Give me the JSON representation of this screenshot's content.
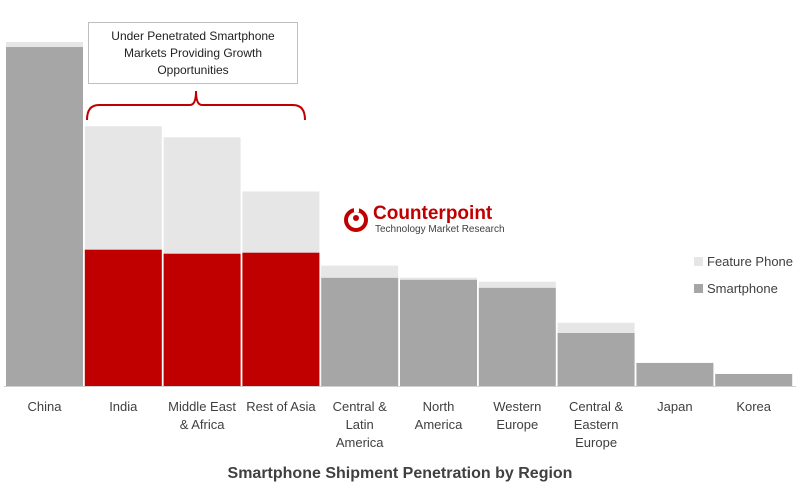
{
  "callout": {
    "text": "Under Penetrated Smartphone Markets Providing Growth Opportunities"
  },
  "logo": {
    "name": "Counterpoint",
    "tagline": "Technology Market Research"
  },
  "colors": {
    "smartphone": "#a6a6a6",
    "highlight": "#c00000",
    "feature_phone": "#e6e6e6",
    "bracket": "#c00000"
  },
  "chart_data": {
    "type": "bar",
    "stacked": true,
    "title": "Smartphone Shipment Penetration by Region",
    "categories": [
      "China",
      "India",
      "Middle East & Africa",
      "Rest of Asia",
      "Central & Latin America",
      "North America",
      "Western Europe",
      "Central & Eastern Europe",
      "Japan",
      "Korea"
    ],
    "category_lines": [
      [
        "China"
      ],
      [
        "India"
      ],
      [
        "Middle East",
        "& Africa"
      ],
      [
        "Rest of Asia"
      ],
      [
        "Central &",
        "Latin",
        "America"
      ],
      [
        "North",
        "America"
      ],
      [
        "Western",
        "Europe"
      ],
      [
        "Central &",
        "Eastern",
        "Europe"
      ],
      [
        "Japan"
      ],
      [
        "Korea"
      ]
    ],
    "series": [
      {
        "name": "Smartphone",
        "values": [
          338,
          136,
          132,
          133,
          108,
          106,
          98,
          53,
          23,
          12
        ]
      },
      {
        "name": "Feature Phone",
        "values": [
          5,
          123,
          116,
          61,
          12,
          2,
          6,
          10,
          0,
          0
        ]
      }
    ],
    "highlighted_categories": [
      "India",
      "Middle East & Africa",
      "Rest of Asia"
    ],
    "ylim": [
      0,
      345
    ],
    "y_axis_shown": false,
    "grid": false,
    "legend_position": "right",
    "legend_order": [
      "Feature Phone",
      "Smartphone"
    ]
  }
}
